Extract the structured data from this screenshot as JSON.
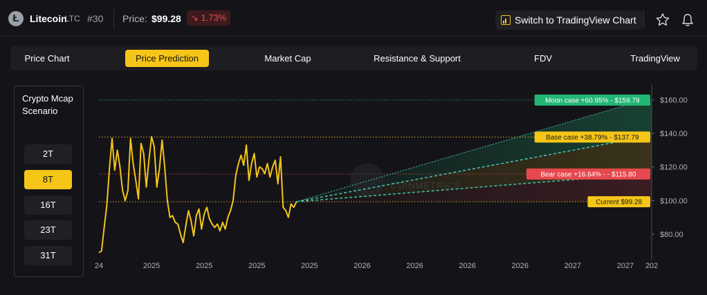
{
  "header": {
    "coin_icon": "litecoin-logo-icon",
    "coin_symbol": "Ł",
    "coin_name": "Litecoin",
    "ticker": "LTC",
    "rank": "#30",
    "price_label": "Price:",
    "price": "$99.28",
    "change": "↘ 1.73%",
    "tradingview_button": "Switch to TradingView Chart",
    "favorite_icon": "star-icon",
    "alert_icon": "bell-icon"
  },
  "tabs": [
    {
      "label": "Price Chart",
      "active": false
    },
    {
      "label": "Price Prediction",
      "active": true
    },
    {
      "label": "Market Cap",
      "active": false
    },
    {
      "label": "Resistance & Support",
      "active": false
    },
    {
      "label": "FDV",
      "active": false
    },
    {
      "label": "TradingView",
      "active": false
    }
  ],
  "scenario": {
    "title": "Crypto Mcap Scenario",
    "options": [
      {
        "label": "2T",
        "active": false
      },
      {
        "label": "8T",
        "active": true
      },
      {
        "label": "16T",
        "active": false
      },
      {
        "label": "23T",
        "active": false
      },
      {
        "label": "31T",
        "active": false
      }
    ]
  },
  "colors": {
    "accent": "#f5c518",
    "moon": "#22b573",
    "base": "#f5c518",
    "bear": "#e5484d",
    "current": "#f5c518",
    "negative": "#ef4a4a"
  },
  "chart_data": {
    "type": "line",
    "y_ticks": [
      "$160.00",
      "$140.00",
      "$120.00",
      "$100.00",
      "$80.00"
    ],
    "y_tick_values": [
      160,
      140,
      120,
      100,
      80
    ],
    "ylim": [
      66,
      170
    ],
    "x_tick_labels": [
      "24",
      "2025",
      "2025",
      "2025",
      "2025",
      "2026",
      "2026",
      "2026",
      "2026",
      "2027",
      "2027",
      "202"
    ],
    "x_range": [
      0,
      10.5
    ],
    "x_ticks": [
      0,
      1,
      2,
      3,
      4,
      5,
      6,
      7,
      8,
      9,
      10,
      10.5
    ],
    "history": {
      "x": [
        0,
        0.05,
        0.1,
        0.15,
        0.2,
        0.25,
        0.3,
        0.35,
        0.4,
        0.45,
        0.5,
        0.55,
        0.6,
        0.65,
        0.7,
        0.75,
        0.8,
        0.85,
        0.9,
        0.95,
        1.0,
        1.05,
        1.1,
        1.15,
        1.2,
        1.25,
        1.3,
        1.35,
        1.4,
        1.45,
        1.5,
        1.55,
        1.6,
        1.65,
        1.7,
        1.75,
        1.8,
        1.85,
        1.9,
        1.95,
        2.0,
        2.05,
        2.1,
        2.15,
        2.2,
        2.25,
        2.3,
        2.35,
        2.4,
        2.45,
        2.5,
        2.55,
        2.6,
        2.65,
        2.7,
        2.75,
        2.8,
        2.85,
        2.9,
        2.95,
        3.0,
        3.05,
        3.1,
        3.15,
        3.2,
        3.25,
        3.3,
        3.35,
        3.4,
        3.45,
        3.5,
        3.55,
        3.6,
        3.65,
        3.7,
        3.75
      ],
      "values": [
        69,
        70,
        84,
        97,
        119,
        137,
        118,
        130,
        120,
        106,
        100,
        106,
        137,
        122,
        112,
        101,
        134,
        128,
        108,
        124,
        138,
        132,
        108,
        119,
        136,
        120,
        100,
        90,
        91,
        87,
        86,
        80,
        75,
        85,
        94,
        88,
        79,
        91,
        95,
        83,
        92,
        96,
        89,
        86,
        84,
        86,
        82,
        87,
        83,
        90,
        94,
        100,
        115,
        122,
        127,
        121,
        133,
        112,
        122,
        128,
        114,
        120,
        119,
        116,
        122,
        114,
        120,
        124,
        110,
        126,
        96,
        94,
        90,
        98,
        96,
        99
      ]
    },
    "current": {
      "label": "Current $99.28",
      "value": 99.28,
      "x": 3.75
    },
    "scenarios": [
      {
        "name": "Moon case",
        "label": "Moon case +60.95% - $159.79",
        "value": 159.79,
        "change_pct": 60.95,
        "color": "#22b573"
      },
      {
        "name": "Base case",
        "label": "Base case +38.79% - $137.79",
        "value": 137.79,
        "change_pct": 38.79,
        "color": "#f5c518"
      },
      {
        "name": "Bear case",
        "label": "Bear case +16.64% - - $115.80",
        "value": 115.8,
        "change_pct": 16.64,
        "color": "#e5484d"
      }
    ],
    "projection_end_x": 10.35,
    "watermark": "CoinMetrics",
    "grid": false
  }
}
